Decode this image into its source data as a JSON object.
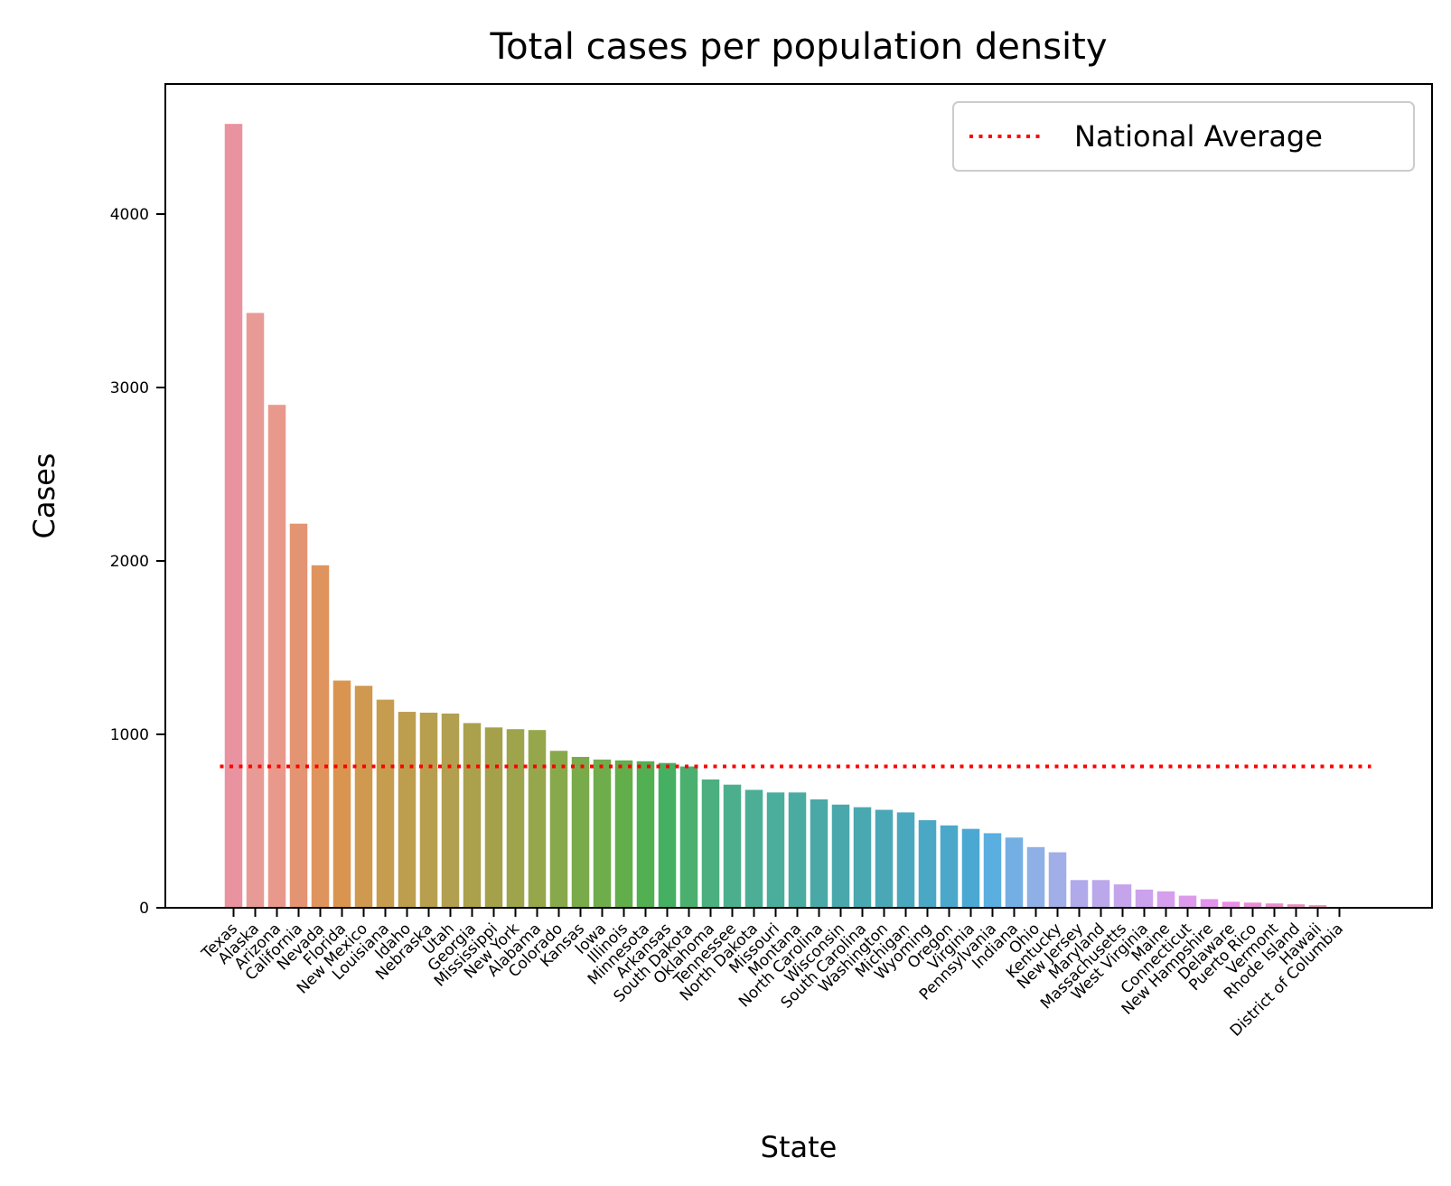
{
  "chart_data": {
    "type": "bar",
    "title": "Total cases per population density",
    "xlabel": "State",
    "ylabel": "Cases",
    "ylim": [
      0,
      4750
    ],
    "yticks": [
      0,
      1000,
      2000,
      3000,
      4000
    ],
    "grid": false,
    "legend": {
      "position": "top-right",
      "entries": [
        {
          "label": "National Average",
          "color": "#ff0000",
          "style": "dotted"
        }
      ]
    },
    "national_average": 815,
    "categories": [
      "Texas",
      "Alaska",
      "Arizona",
      "California",
      "Nevada",
      "Florida",
      "New Mexico",
      "Louisiana",
      "Idaho",
      "Nebraska",
      "Utah",
      "Georgia",
      "Mississippi",
      "New York",
      "Alabama",
      "Colorado",
      "Kansas",
      "Iowa",
      "Illinois",
      "Minnesota",
      "Arkansas",
      "South Dakota",
      "Oklahoma",
      "Tennessee",
      "North Dakota",
      "Missouri",
      "Montana",
      "North Carolina",
      "Wisconsin",
      "South Carolina",
      "Washington",
      "Michigan",
      "Wyoming",
      "Oregon",
      "Virginia",
      "Pennsylvania",
      "Indiana",
      "Ohio",
      "Kentucky",
      "New Jersey",
      "Maryland",
      "Massachusetts",
      "West Virginia",
      "Maine",
      "Connecticut",
      "New Hampshire",
      "Delaware",
      "Puerto Rico",
      "Vermont",
      "Rhode Island",
      "Hawaii",
      "District of Columbia"
    ],
    "values": [
      4520,
      3430,
      2900,
      2215,
      1975,
      1310,
      1280,
      1200,
      1130,
      1125,
      1120,
      1065,
      1040,
      1030,
      1025,
      905,
      870,
      855,
      850,
      845,
      835,
      815,
      740,
      710,
      680,
      665,
      665,
      625,
      595,
      580,
      565,
      550,
      505,
      475,
      455,
      430,
      405,
      350,
      320,
      160,
      160,
      135,
      105,
      95,
      70,
      50,
      35,
      30,
      25,
      20,
      15,
      5
    ],
    "colors": [
      "#e8939f",
      "#e89b96",
      "#e8998c",
      "#e39473",
      "#e0945d",
      "#d99550",
      "#cf9950",
      "#c69c4f",
      "#bd9e4f",
      "#b79f4f",
      "#b29f4f",
      "#aba04c",
      "#a5a14b",
      "#9da44b",
      "#96a64b",
      "#88a84c",
      "#7aab4b",
      "#6fad4c",
      "#61ae4b",
      "#52af52",
      "#46b062",
      "#4bb06f",
      "#4baf80",
      "#4baf8d",
      "#4bae95",
      "#4bad9c",
      "#4aaba1",
      "#4aa9a7",
      "#49a8ac",
      "#4aa8b0",
      "#4aa8b6",
      "#4aa8be",
      "#4ba8c4",
      "#4ba8ca",
      "#4aa8d3",
      "#5aaee0",
      "#74afe3",
      "#8eb0e6",
      "#a1aee8",
      "#b0aaea",
      "#bba8ea",
      "#c4a5ec",
      "#cba2ec",
      "#d59fed",
      "#dc9aed",
      "#e294ea",
      "#e691e3",
      "#e68fd7",
      "#e68fcc",
      "#e691c2",
      "#e693b8",
      "#e696ae"
    ]
  }
}
